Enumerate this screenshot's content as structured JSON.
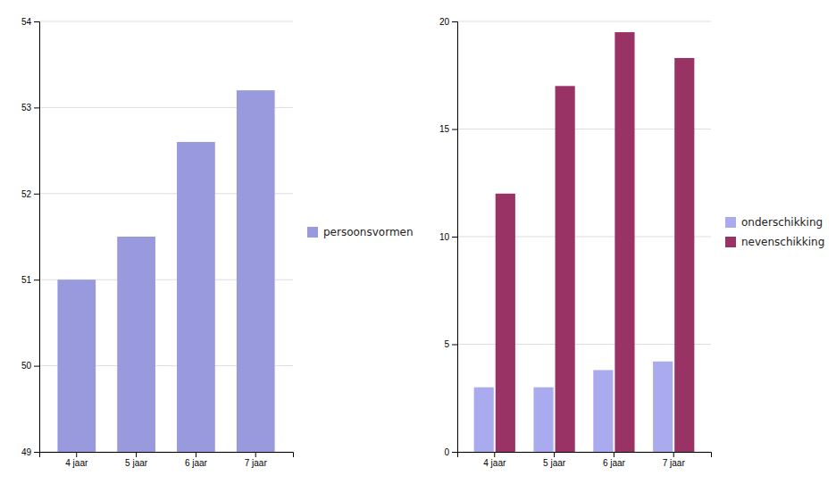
{
  "chart_data": [
    {
      "type": "bar",
      "categories": [
        "4 jaar",
        "5 jaar",
        "6 jaar",
        "7 jaar"
      ],
      "series": [
        {
          "name": "persoonsvormen",
          "color": "#9999dd",
          "values": [
            51.0,
            51.5,
            52.6,
            53.2
          ]
        }
      ],
      "ylim": [
        49,
        54
      ],
      "yticks": [
        49,
        50,
        51,
        52,
        53,
        54
      ],
      "grid": true,
      "legend": "right"
    },
    {
      "type": "bar",
      "categories": [
        "4 jaar",
        "5 jaar",
        "6 jaar",
        "7 jaar"
      ],
      "series": [
        {
          "name": "onderschikking",
          "color": "#aaaaee",
          "values": [
            3.0,
            3.0,
            3.8,
            4.2
          ]
        },
        {
          "name": "nevenschikking",
          "color": "#993366",
          "values": [
            12.0,
            17.0,
            19.5,
            18.3
          ]
        }
      ],
      "ylim": [
        0,
        20
      ],
      "yticks": [
        0,
        5,
        10,
        15,
        20
      ],
      "grid": true,
      "legend": "right"
    }
  ]
}
